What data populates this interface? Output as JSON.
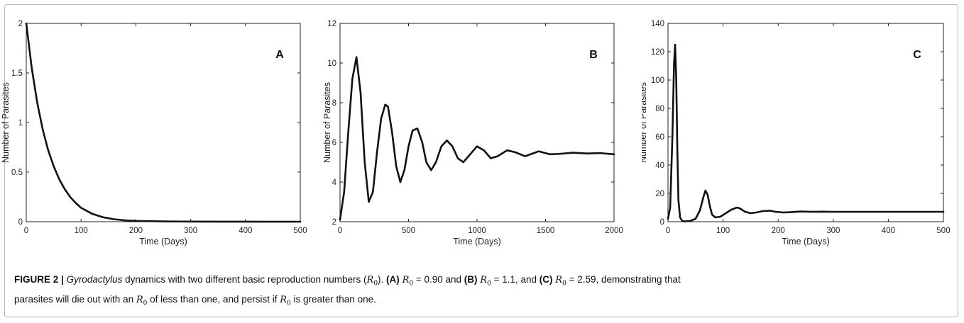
{
  "caption": {
    "figure_label": "FIGURE 2 |",
    "genus": "Gyrodactylus",
    "text_1": " dynamics with two different basic reproduction numbers (",
    "r0_symbol": "R",
    "r0_subscript": "0",
    "text_2": "). ",
    "label_a": "(A)",
    "eq_a": " = 0.90 and ",
    "label_b": "(B)",
    "eq_b": " = 1.1, and ",
    "label_c": "(C)",
    "eq_c": " = 2.59, demonstrating that",
    "text_3": "parasites will die out with an ",
    "text_4": " of less than one, and persist if ",
    "text_5": " is greater than one."
  },
  "chart_data": [
    {
      "type": "line",
      "panel_label": "A",
      "xlabel": "Time (Days)",
      "ylabel": "Number of Parasites",
      "xlim": [
        0,
        500
      ],
      "ylim": [
        0,
        2
      ],
      "xticks": [
        0,
        100,
        200,
        300,
        400,
        500
      ],
      "yticks": [
        0,
        0.5,
        1,
        1.5,
        2
      ],
      "ytick_labels": [
        "0",
        "0.5",
        "1",
        "1.5",
        "2"
      ],
      "series": [
        {
          "x": [
            0,
            10,
            20,
            30,
            40,
            50,
            60,
            70,
            80,
            90,
            100,
            120,
            140,
            160,
            180,
            200,
            250,
            300,
            350,
            400,
            450,
            500
          ],
          "y": [
            2.0,
            1.55,
            1.2,
            0.93,
            0.72,
            0.56,
            0.43,
            0.33,
            0.25,
            0.19,
            0.14,
            0.08,
            0.045,
            0.025,
            0.014,
            0.008,
            0.003,
            0.001,
            0.0005,
            0.0002,
            0.0001,
            0.0
          ]
        }
      ]
    },
    {
      "type": "line",
      "panel_label": "B",
      "xlabel": "Time (Days)",
      "ylabel": "Number of Parasites",
      "xlim": [
        0,
        2000
      ],
      "ylim": [
        2,
        12
      ],
      "xticks": [
        0,
        500,
        1000,
        1500,
        2000
      ],
      "yticks": [
        2,
        4,
        6,
        8,
        10,
        12
      ],
      "ytick_labels": [
        "2",
        "4",
        "6",
        "8",
        "10",
        "12"
      ],
      "series": [
        {
          "x": [
            0,
            30,
            60,
            90,
            120,
            150,
            180,
            210,
            240,
            270,
            300,
            330,
            350,
            380,
            410,
            440,
            470,
            500,
            530,
            565,
            600,
            630,
            665,
            700,
            740,
            780,
            820,
            860,
            900,
            950,
            1000,
            1050,
            1100,
            1150,
            1220,
            1280,
            1350,
            1450,
            1530,
            1600,
            1700,
            1800,
            1900,
            2000
          ],
          "y": [
            2.1,
            3.5,
            6.5,
            9.2,
            10.3,
            8.5,
            5.0,
            3.0,
            3.5,
            5.5,
            7.2,
            7.9,
            7.8,
            6.5,
            4.8,
            4.0,
            4.6,
            5.8,
            6.6,
            6.7,
            6.0,
            5.0,
            4.6,
            5.0,
            5.8,
            6.1,
            5.8,
            5.2,
            5.0,
            5.4,
            5.8,
            5.6,
            5.2,
            5.3,
            5.6,
            5.5,
            5.3,
            5.55,
            5.4,
            5.42,
            5.48,
            5.44,
            5.46,
            5.4
          ]
        }
      ]
    },
    {
      "type": "line",
      "panel_label": "C",
      "xlabel": "Time (Days)",
      "ylabel": "Number of Parasites",
      "xlim": [
        0,
        500
      ],
      "ylim": [
        0,
        140
      ],
      "xticks": [
        0,
        100,
        200,
        300,
        400,
        500
      ],
      "yticks": [
        0,
        20,
        40,
        60,
        80,
        100,
        120,
        140
      ],
      "ytick_labels": [
        "0",
        "20",
        "40",
        "60",
        "80",
        "100",
        "120",
        "140"
      ],
      "series": [
        {
          "x": [
            0,
            4,
            8,
            11,
            13,
            15,
            17,
            19,
            22,
            26,
            30,
            40,
            50,
            58,
            64,
            68,
            72,
            76,
            80,
            86,
            95,
            105,
            115,
            125,
            130,
            140,
            150,
            160,
            172,
            185,
            195,
            210,
            225,
            240,
            260,
            280,
            300,
            350,
            400,
            450,
            500
          ],
          "y": [
            2,
            10,
            60,
            112,
            125,
            100,
            50,
            15,
            3,
            0.5,
            0.2,
            0.5,
            2,
            8,
            17,
            22,
            19,
            11,
            5,
            3,
            3.5,
            6,
            8.5,
            10,
            9.5,
            7,
            6,
            6.5,
            7.5,
            7.8,
            7,
            6.5,
            6.8,
            7.2,
            7,
            7.1,
            7,
            7,
            7,
            7,
            7
          ]
        }
      ]
    }
  ]
}
